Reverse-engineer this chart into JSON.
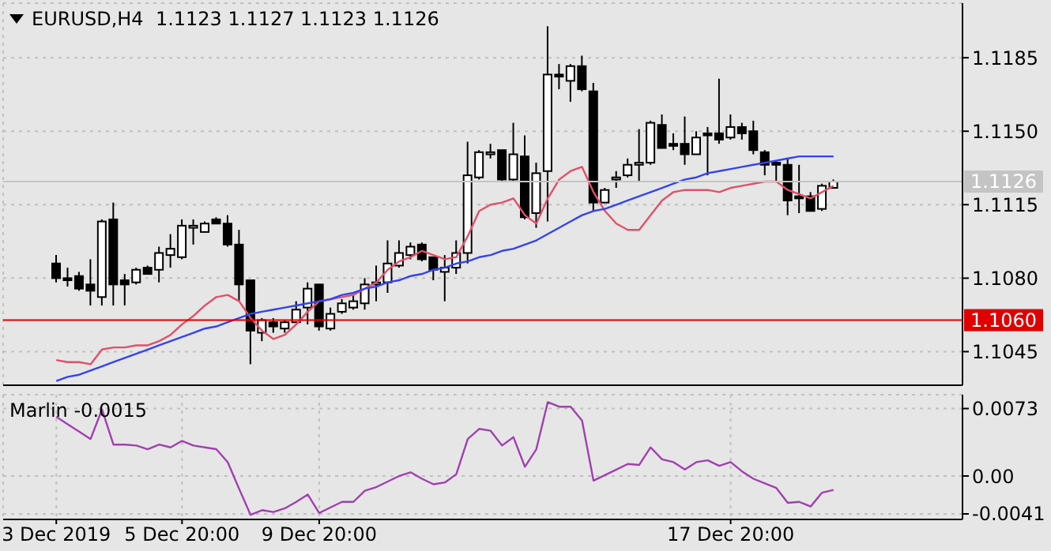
{
  "chart_data": [
    {
      "type": "candlestick",
      "title": "EURUSD,H4  1.1123 1.1127 1.1123 1.1126",
      "categories": [
        null,
        null,
        null,
        null,
        null,
        null,
        null,
        null,
        null,
        null,
        null,
        null,
        null,
        null,
        null,
        null,
        null,
        null,
        null,
        null,
        null,
        null,
        null,
        null,
        null,
        null,
        null,
        null,
        null,
        null,
        null,
        null,
        null,
        null,
        null,
        null,
        null,
        null,
        null,
        null,
        null,
        null,
        null,
        null,
        null,
        null,
        null,
        null,
        null,
        null,
        null,
        null,
        null,
        null,
        null,
        null,
        null,
        null,
        null,
        null,
        null,
        null,
        null,
        null,
        null,
        null,
        null,
        null,
        null
      ],
      "ohlc": [
        [
          1.1087,
          1.1091,
          1.1078,
          1.108
        ],
        [
          1.108,
          1.1085,
          1.1076,
          1.1079
        ],
        [
          1.1081,
          1.1083,
          1.1074,
          1.1075
        ],
        [
          1.1077,
          1.1089,
          1.1067,
          1.1074
        ],
        [
          1.1071,
          1.1108,
          1.1067,
          1.1107
        ],
        [
          1.1108,
          1.1116,
          1.1067,
          1.1077
        ],
        [
          1.1079,
          1.1082,
          1.1067,
          1.1077
        ],
        [
          1.1078,
          1.1085,
          1.1077,
          1.1084
        ],
        [
          1.1085,
          1.1086,
          1.1082,
          1.1082
        ],
        [
          1.1084,
          1.1095,
          1.1078,
          1.1092
        ],
        [
          1.1091,
          1.1101,
          1.1085,
          1.1094
        ],
        [
          1.109,
          1.1108,
          1.1089,
          1.1105
        ],
        [
          1.1104,
          1.1108,
          1.1096,
          1.1105
        ],
        [
          1.1102,
          1.1107,
          1.1102,
          1.1106
        ],
        [
          1.1108,
          1.1109,
          1.1106,
          1.1106
        ],
        [
          1.1106,
          1.111,
          1.1095,
          1.1096
        ],
        [
          1.1096,
          1.1103,
          1.1069,
          1.1077
        ],
        [
          1.1079,
          1.1079,
          1.1039,
          1.1055
        ],
        [
          1.1054,
          1.1061,
          1.105,
          1.106
        ],
        [
          1.1059,
          1.1061,
          1.1054,
          1.1057
        ],
        [
          1.1056,
          1.106,
          1.1054,
          1.1059
        ],
        [
          1.1059,
          1.1069,
          1.1059,
          1.1065
        ],
        [
          1.1066,
          1.1078,
          1.1058,
          1.1075
        ],
        [
          1.1077,
          1.1077,
          1.1055,
          1.1057
        ],
        [
          1.1056,
          1.1066,
          1.1055,
          1.1063
        ],
        [
          1.1064,
          1.107,
          1.1063,
          1.1068
        ],
        [
          1.1066,
          1.1072,
          1.1065,
          1.1069
        ],
        [
          1.1068,
          1.108,
          1.1065,
          1.1077
        ],
        [
          1.1077,
          1.1086,
          1.1069,
          1.1078
        ],
        [
          1.1078,
          1.1098,
          1.1073,
          1.1087
        ],
        [
          1.1086,
          1.1098,
          1.1085,
          1.1092
        ],
        [
          1.1091,
          1.1097,
          1.1089,
          1.1095
        ],
        [
          1.1096,
          1.1097,
          1.1088,
          1.1089
        ],
        [
          1.109,
          1.109,
          1.1079,
          1.1084
        ],
        [
          1.1083,
          1.1091,
          1.1069,
          1.1085
        ],
        [
          1.1085,
          1.1098,
          1.1082,
          1.1092
        ],
        [
          1.1092,
          1.1145,
          1.1087,
          1.1129
        ],
        [
          1.1128,
          1.1141,
          1.1127,
          1.114
        ],
        [
          1.1139,
          1.1144,
          1.1137,
          1.114
        ],
        [
          1.1141,
          1.1141,
          1.1126,
          1.1127
        ],
        [
          1.1127,
          1.1154,
          1.1126,
          1.1139
        ],
        [
          1.1138,
          1.1148,
          1.1108,
          1.1109
        ],
        [
          1.1111,
          1.1135,
          1.1104,
          1.113
        ],
        [
          1.1131,
          1.12,
          1.1107,
          1.1177
        ],
        [
          1.1177,
          1.1182,
          1.117,
          1.1176
        ],
        [
          1.1174,
          1.1182,
          1.1164,
          1.1181
        ],
        [
          1.1181,
          1.1186,
          1.1169,
          1.117
        ],
        [
          1.1169,
          1.1173,
          1.1112,
          1.1116
        ],
        [
          1.1116,
          1.1123,
          1.1116,
          1.1122
        ],
        [
          1.1127,
          1.1131,
          1.1123,
          1.1128
        ],
        [
          1.1129,
          1.1137,
          1.1128,
          1.1134
        ],
        [
          1.1134,
          1.1151,
          1.1126,
          1.1135
        ],
        [
          1.1135,
          1.1155,
          1.1134,
          1.1154
        ],
        [
          1.1153,
          1.1158,
          1.1142,
          1.1142
        ],
        [
          1.1144,
          1.1149,
          1.1141,
          1.1143
        ],
        [
          1.1144,
          1.1157,
          1.1134,
          1.1139
        ],
        [
          1.1139,
          1.115,
          1.1139,
          1.1147
        ],
        [
          1.1149,
          1.1152,
          1.1129,
          1.1148
        ],
        [
          1.1149,
          1.1175,
          1.1144,
          1.1146
        ],
        [
          1.1147,
          1.1158,
          1.1146,
          1.1152
        ],
        [
          1.1152,
          1.1154,
          1.1146,
          1.1149
        ],
        [
          1.115,
          1.1155,
          1.1139,
          1.1141
        ],
        [
          1.114,
          1.1141,
          1.1129,
          1.1134
        ],
        [
          1.1135,
          1.1136,
          1.1126,
          1.1134
        ],
        [
          1.1134,
          1.1137,
          1.111,
          1.1117
        ],
        [
          1.1119,
          1.1134,
          1.1111,
          1.1118
        ],
        [
          1.1119,
          1.1121,
          1.1112,
          1.1112
        ],
        [
          1.1113,
          1.1125,
          1.1112,
          1.1124
        ],
        [
          1.1123,
          1.1127,
          1.1123,
          1.1126
        ]
      ],
      "series": [
        {
          "type": "line",
          "color": "#e0506a",
          "values": [
            1.1041,
            1.104,
            1.104,
            1.1039,
            1.1046,
            1.1047,
            1.1047,
            1.1048,
            1.1048,
            1.105,
            1.1053,
            1.1058,
            1.1062,
            1.1067,
            1.1071,
            1.1072,
            1.1069,
            1.1061,
            1.1055,
            1.1051,
            1.1053,
            1.1058,
            1.1064,
            1.1069,
            1.107,
            1.1071,
            1.1072,
            1.1075,
            1.1078,
            1.1084,
            1.1088,
            1.109,
            1.1093,
            1.1091,
            1.1089,
            1.109,
            1.11,
            1.1112,
            1.1115,
            1.1116,
            1.1118,
            1.111,
            1.1106,
            1.1118,
            1.1127,
            1.1131,
            1.1133,
            1.1121,
            1.1112,
            1.1106,
            1.1103,
            1.1103,
            1.111,
            1.1117,
            1.1121,
            1.1122,
            1.1122,
            1.1122,
            1.1121,
            1.1123,
            1.1124,
            1.1125,
            1.1126,
            1.1126,
            1.1122,
            1.112,
            1.1118,
            1.1121,
            1.1124
          ]
        },
        {
          "type": "line",
          "color": "#3344ee",
          "values": [
            1.1031,
            1.1033,
            1.1034,
            1.1036,
            1.1038,
            1.104,
            1.1042,
            1.1044,
            1.1046,
            1.1048,
            1.105,
            1.1052,
            1.1054,
            1.1056,
            1.1057,
            1.1059,
            1.1061,
            1.1063,
            1.1064,
            1.1065,
            1.1066,
            1.1067,
            1.1068,
            1.1069,
            1.107,
            1.1072,
            1.1073,
            1.1075,
            1.1076,
            1.1078,
            1.1079,
            1.1081,
            1.1082,
            1.1084,
            1.1085,
            1.1087,
            1.1088,
            1.109,
            1.1091,
            1.1093,
            1.1094,
            1.1096,
            1.1098,
            1.1101,
            1.1104,
            1.1107,
            1.111,
            1.1112,
            1.1113,
            1.1115,
            1.1117,
            1.1119,
            1.1121,
            1.1123,
            1.1125,
            1.1127,
            1.1128,
            1.113,
            1.1131,
            1.1132,
            1.1133,
            1.1134,
            1.1135,
            1.1136,
            1.1137,
            1.1138,
            1.1138,
            1.1138,
            1.1138
          ]
        }
      ],
      "ylim": [
        1.1029,
        1.1211
      ],
      "yticks": [
        1.1185,
        {
          "value": 1.115,
          "label": "1.1150"
        },
        1.1115,
        {
          "value": 1.108,
          "label": "1.1080"
        },
        1.1045
      ],
      "grid": true,
      "tick_labels": "y",
      "ref_lines": [
        {
          "axis": "y",
          "value": 1.106,
          "label": "1.1060",
          "color": "#e00000"
        },
        {
          "axis": "y",
          "value": 1.1126,
          "label": "1.1126",
          "color": "#c4c4c4"
        }
      ]
    },
    {
      "type": "line",
      "title": "Marlin -0.0015",
      "categories": [
        "3 Dec 2019",
        null,
        null,
        null,
        null,
        null,
        null,
        null,
        null,
        null,
        null,
        "5 Dec 20:00",
        null,
        null,
        null,
        null,
        null,
        null,
        null,
        null,
        null,
        null,
        null,
        "9 Dec 20:00",
        null,
        null,
        null,
        null,
        null,
        null,
        null,
        null,
        null,
        null,
        null,
        null,
        null,
        null,
        null,
        null,
        null,
        null,
        null,
        null,
        null,
        null,
        null,
        null,
        null,
        null,
        null,
        null,
        null,
        null,
        null,
        null,
        null,
        null,
        null,
        "17 Dec 20:00",
        null,
        null,
        null,
        null,
        null,
        null,
        null,
        null,
        null
      ],
      "series": [
        {
          "color": "#a040b0",
          "values": [
            0.0064,
            0.0056,
            0.0048,
            0.004,
            0.0072,
            0.0034,
            0.0034,
            0.0033,
            0.0029,
            0.0034,
            0.0031,
            0.0038,
            0.0033,
            0.0031,
            0.0029,
            0.0015,
            -0.0014,
            -0.0042,
            -0.0037,
            -0.0039,
            -0.0035,
            -0.0028,
            -0.002,
            -0.004,
            -0.0034,
            -0.0028,
            -0.0028,
            -0.0016,
            -0.0012,
            -0.0006,
            0.0,
            0.0004,
            -0.0003,
            -0.0009,
            -0.0007,
            0.0002,
            0.004,
            0.0051,
            0.0049,
            0.0033,
            0.0042,
            0.001,
            0.0029,
            0.008,
            0.0075,
            0.0075,
            0.006,
            -0.0005,
            0.0001,
            0.0007,
            0.0013,
            0.0012,
            0.0031,
            0.0018,
            0.0015,
            0.0007,
            0.0015,
            0.0017,
            0.0011,
            0.0015,
            0.0005,
            -0.0003,
            -0.0008,
            -0.0013,
            -0.0029,
            -0.0028,
            -0.0033,
            -0.0018,
            -0.0015
          ]
        }
      ],
      "ylim": [
        -0.0047,
        0.0088
      ],
      "yticks": [
        0.0073,
        {
          "value": 0,
          "label": "0.00"
        },
        -0.0041
      ],
      "grid": true
    }
  ]
}
